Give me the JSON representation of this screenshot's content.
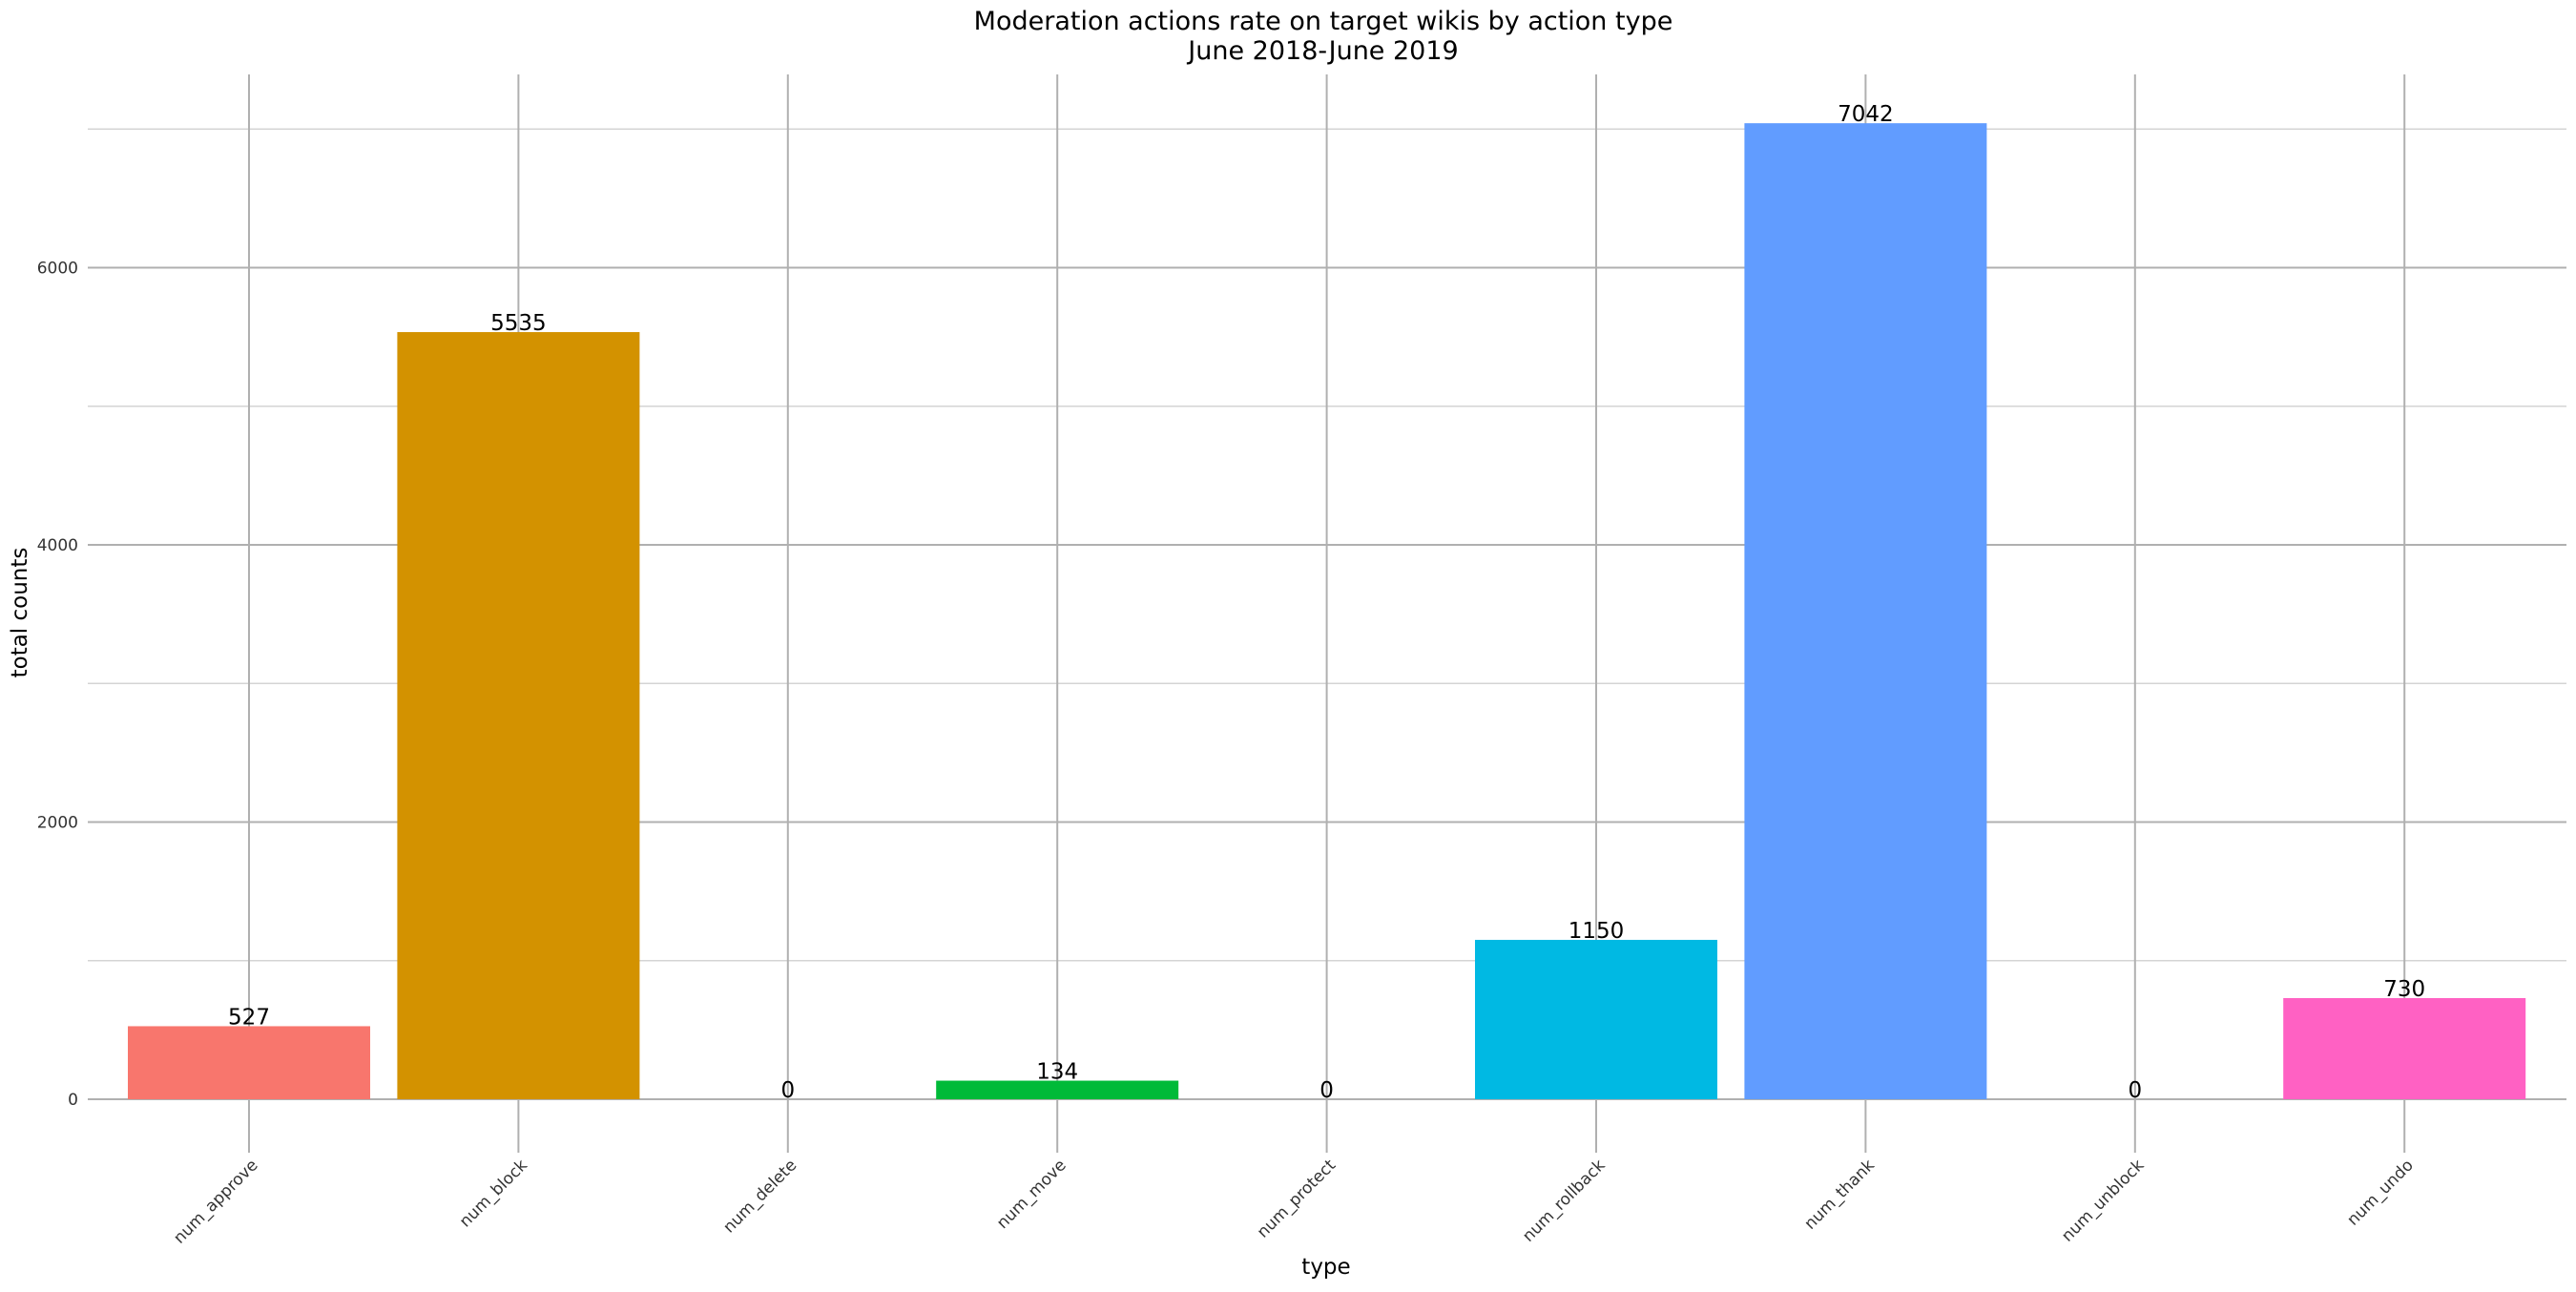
{
  "chart_data": {
    "type": "bar",
    "title": "Moderation actions rate on target wikis by action type",
    "subtitle": "June 2018-June 2019",
    "xlabel": "type",
    "ylabel": "total counts",
    "categories": [
      "num_approve",
      "num_block",
      "num_delete",
      "num_move",
      "num_protect",
      "num_rollback",
      "num_thank",
      "num_unblock",
      "num_undo"
    ],
    "values": [
      527,
      5535,
      0,
      134,
      0,
      1150,
      7042,
      0,
      730
    ],
    "value_labels": [
      "527",
      "5535",
      "0",
      "134",
      "0",
      "1150",
      "7042",
      "0",
      "730"
    ],
    "colors": [
      "#F8766D",
      "#D39200",
      "#93AA00",
      "#00BA38",
      "#00C19F",
      "#00B9E3",
      "#619CFF",
      "#DB72FB",
      "#FF61C3"
    ],
    "ylim": [
      0,
      7400
    ],
    "yticks": [
      0,
      2000,
      4000,
      6000
    ],
    "ytick_labels": [
      "0",
      "2000",
      "4000",
      "6000"
    ],
    "grid": true,
    "legend": "none"
  }
}
